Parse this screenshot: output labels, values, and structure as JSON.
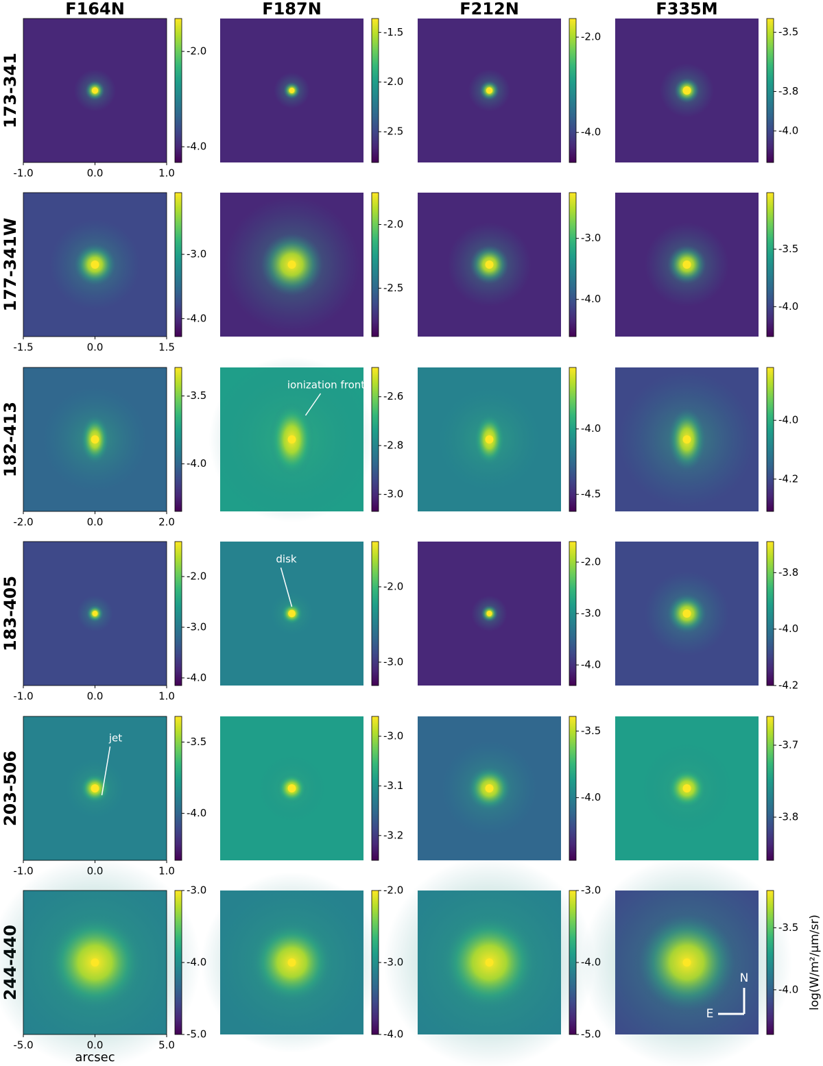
{
  "columns": [
    "F164N",
    "F187N",
    "F212N",
    "F335M"
  ],
  "x_label": "arcsec",
  "colorbar_label": "log(W/m²/μm/sr)",
  "rows": [
    {
      "name": "173-341",
      "xlim": [
        -1,
        1
      ],
      "xticks": [
        {
          "value": -1,
          "label": "-1.0"
        },
        {
          "value": 0,
          "label": "0.0"
        },
        {
          "value": 1,
          "label": "1.0"
        }
      ],
      "panels": [
        {
          "clim": [
            -4.33,
            -1.31
          ],
          "ticks": [
            {
              "value": -2,
              "label": "-2.0"
            },
            {
              "value": -4,
              "label": "-4.0"
            }
          ]
        },
        {
          "clim": [
            -2.81,
            -1.36
          ],
          "ticks": [
            {
              "value": -1.5,
              "label": "-1.5"
            },
            {
              "value": -2,
              "label": "-2.0"
            },
            {
              "value": -2.5,
              "label": "-2.5"
            }
          ]
        },
        {
          "clim": [
            -4.63,
            -1.61
          ],
          "ticks": [
            {
              "value": -2,
              "label": "-2.0"
            },
            {
              "value": -4,
              "label": "-4.0"
            }
          ]
        },
        {
          "clim": [
            -4.16,
            -3.43
          ],
          "ticks": [
            {
              "value": -3.5,
              "label": "-3.5"
            },
            {
              "value": -3.8,
              "label": "-3.8"
            },
            {
              "value": -4,
              "label": "-4.0"
            }
          ]
        }
      ]
    },
    {
      "name": "177-341W",
      "xlim": [
        -1.5,
        1.5
      ],
      "xticks": [
        {
          "value": -1.5,
          "label": "-1.5"
        },
        {
          "value": 0,
          "label": "0.0"
        },
        {
          "value": 1.5,
          "label": "1.5"
        }
      ],
      "panels": [
        {
          "clim": [
            -4.28,
            -2.04
          ],
          "ticks": [
            {
              "value": -3,
              "label": "-3.0"
            },
            {
              "value": -4,
              "label": "-4.0"
            }
          ]
        },
        {
          "clim": [
            -2.88,
            -1.75
          ],
          "ticks": [
            {
              "value": -2,
              "label": "-2.0"
            },
            {
              "value": -2.5,
              "label": "-2.5"
            }
          ]
        },
        {
          "clim": [
            -4.61,
            -2.25
          ],
          "ticks": [
            {
              "value": -3,
              "label": "-3.0"
            },
            {
              "value": -4,
              "label": "-4.0"
            }
          ]
        },
        {
          "clim": [
            -4.26,
            -3.01
          ],
          "ticks": [
            {
              "value": -3.5,
              "label": "-3.5"
            },
            {
              "value": -4,
              "label": "-4.0"
            }
          ]
        }
      ]
    },
    {
      "name": "182-413",
      "xlim": [
        -2,
        2
      ],
      "xticks": [
        {
          "value": -2,
          "label": "-2.0"
        },
        {
          "value": 0,
          "label": "0.0"
        },
        {
          "value": 2,
          "label": "2.0"
        }
      ],
      "panels": [
        {
          "clim": [
            -4.35,
            -3.29
          ],
          "ticks": [
            {
              "value": -3.5,
              "label": "-3.5"
            },
            {
              "value": -4,
              "label": "-4.0"
            }
          ]
        },
        {
          "clim": [
            -3.07,
            -2.48
          ],
          "ticks": [
            {
              "value": -2.6,
              "label": "-2.6"
            },
            {
              "value": -2.8,
              "label": "-2.8"
            },
            {
              "value": -3,
              "label": "-3.0"
            }
          ],
          "annotation": "ionization front"
        },
        {
          "clim": [
            -4.63,
            -3.53
          ],
          "ticks": [
            {
              "value": -4,
              "label": "-4.0"
            },
            {
              "value": -4.5,
              "label": "-4.5"
            }
          ]
        },
        {
          "clim": [
            -4.31,
            -3.82
          ],
          "ticks": [
            {
              "value": -4,
              "label": "-4.0"
            },
            {
              "value": -4.2,
              "label": "-4.2"
            }
          ]
        }
      ]
    },
    {
      "name": "183-405",
      "xlim": [
        -1,
        1
      ],
      "xticks": [
        {
          "value": -1,
          "label": "-1.0"
        },
        {
          "value": 0,
          "label": "0.0"
        },
        {
          "value": 1,
          "label": "1.0"
        }
      ],
      "panels": [
        {
          "clim": [
            -4.15,
            -1.31
          ],
          "ticks": [
            {
              "value": -2,
              "label": "-2.0"
            },
            {
              "value": -3,
              "label": "-3.0"
            },
            {
              "value": -4,
              "label": "-4.0"
            }
          ]
        },
        {
          "clim": [
            -3.31,
            -1.4
          ],
          "ticks": [
            {
              "value": -2,
              "label": "-2.0"
            },
            {
              "value": -3,
              "label": "-3.0"
            }
          ],
          "annotation": "disk"
        },
        {
          "clim": [
            -4.4,
            -1.6
          ],
          "ticks": [
            {
              "value": -2,
              "label": "-2.0"
            },
            {
              "value": -3,
              "label": "-3.0"
            },
            {
              "value": -4,
              "label": "-4.0"
            }
          ]
        },
        {
          "clim": [
            -4.2,
            -3.69
          ],
          "ticks": [
            {
              "value": -3.8,
              "label": "-3.8"
            },
            {
              "value": -4,
              "label": "-4.0"
            },
            {
              "value": -4.2,
              "label": "-4.2"
            }
          ]
        }
      ]
    },
    {
      "name": "203-506",
      "xlim": [
        -1,
        1
      ],
      "xticks": [
        {
          "value": -1,
          "label": "-1.0"
        },
        {
          "value": 0,
          "label": "0.0"
        },
        {
          "value": 1,
          "label": "1.0"
        }
      ],
      "panels": [
        {
          "clim": [
            -4.33,
            -3.32
          ],
          "ticks": [
            {
              "value": -3.5,
              "label": "-3.5"
            },
            {
              "value": -4,
              "label": "-4.0"
            }
          ],
          "annotation": "jet"
        },
        {
          "clim": [
            -3.25,
            -2.96
          ],
          "ticks": [
            {
              "value": -3,
              "label": "-3.0"
            },
            {
              "value": -3.1,
              "label": "-3.1"
            },
            {
              "value": -3.2,
              "label": "-3.2"
            }
          ]
        },
        {
          "clim": [
            -4.47,
            -3.39
          ],
          "ticks": [
            {
              "value": -3.5,
              "label": "-3.5"
            },
            {
              "value": -4,
              "label": "-4.0"
            }
          ]
        },
        {
          "clim": [
            -3.86,
            -3.66
          ],
          "ticks": [
            {
              "value": -3.7,
              "label": "-3.7"
            },
            {
              "value": -3.8,
              "label": "-3.8"
            }
          ]
        }
      ]
    },
    {
      "name": "244-440",
      "xlim": [
        -5,
        5
      ],
      "xticks": [
        {
          "value": -5,
          "label": "-5.0"
        },
        {
          "value": 0,
          "label": "0.0"
        },
        {
          "value": 5,
          "label": "5.0"
        }
      ],
      "panels": [
        {
          "clim": [
            -5,
            -3
          ],
          "ticks": [
            {
              "value": -3,
              "label": "-3.0"
            },
            {
              "value": -4,
              "label": "-4.0"
            },
            {
              "value": -5,
              "label": "-5.0"
            }
          ]
        },
        {
          "clim": [
            -4,
            -2
          ],
          "ticks": [
            {
              "value": -2,
              "label": "-2.0"
            },
            {
              "value": -3,
              "label": "-3.0"
            },
            {
              "value": -4,
              "label": "-4.0"
            }
          ]
        },
        {
          "clim": [
            -5,
            -3
          ],
          "ticks": [
            {
              "value": -3,
              "label": "-3.0"
            },
            {
              "value": -4,
              "label": "-4.0"
            },
            {
              "value": -5,
              "label": "-5.0"
            }
          ]
        },
        {
          "clim": [
            -4.36,
            -3.2
          ],
          "ticks": [
            {
              "value": -3.5,
              "label": "-3.5"
            },
            {
              "value": -4,
              "label": "-4.0"
            }
          ],
          "compass": [
            "N",
            "E"
          ]
        }
      ]
    }
  ]
}
